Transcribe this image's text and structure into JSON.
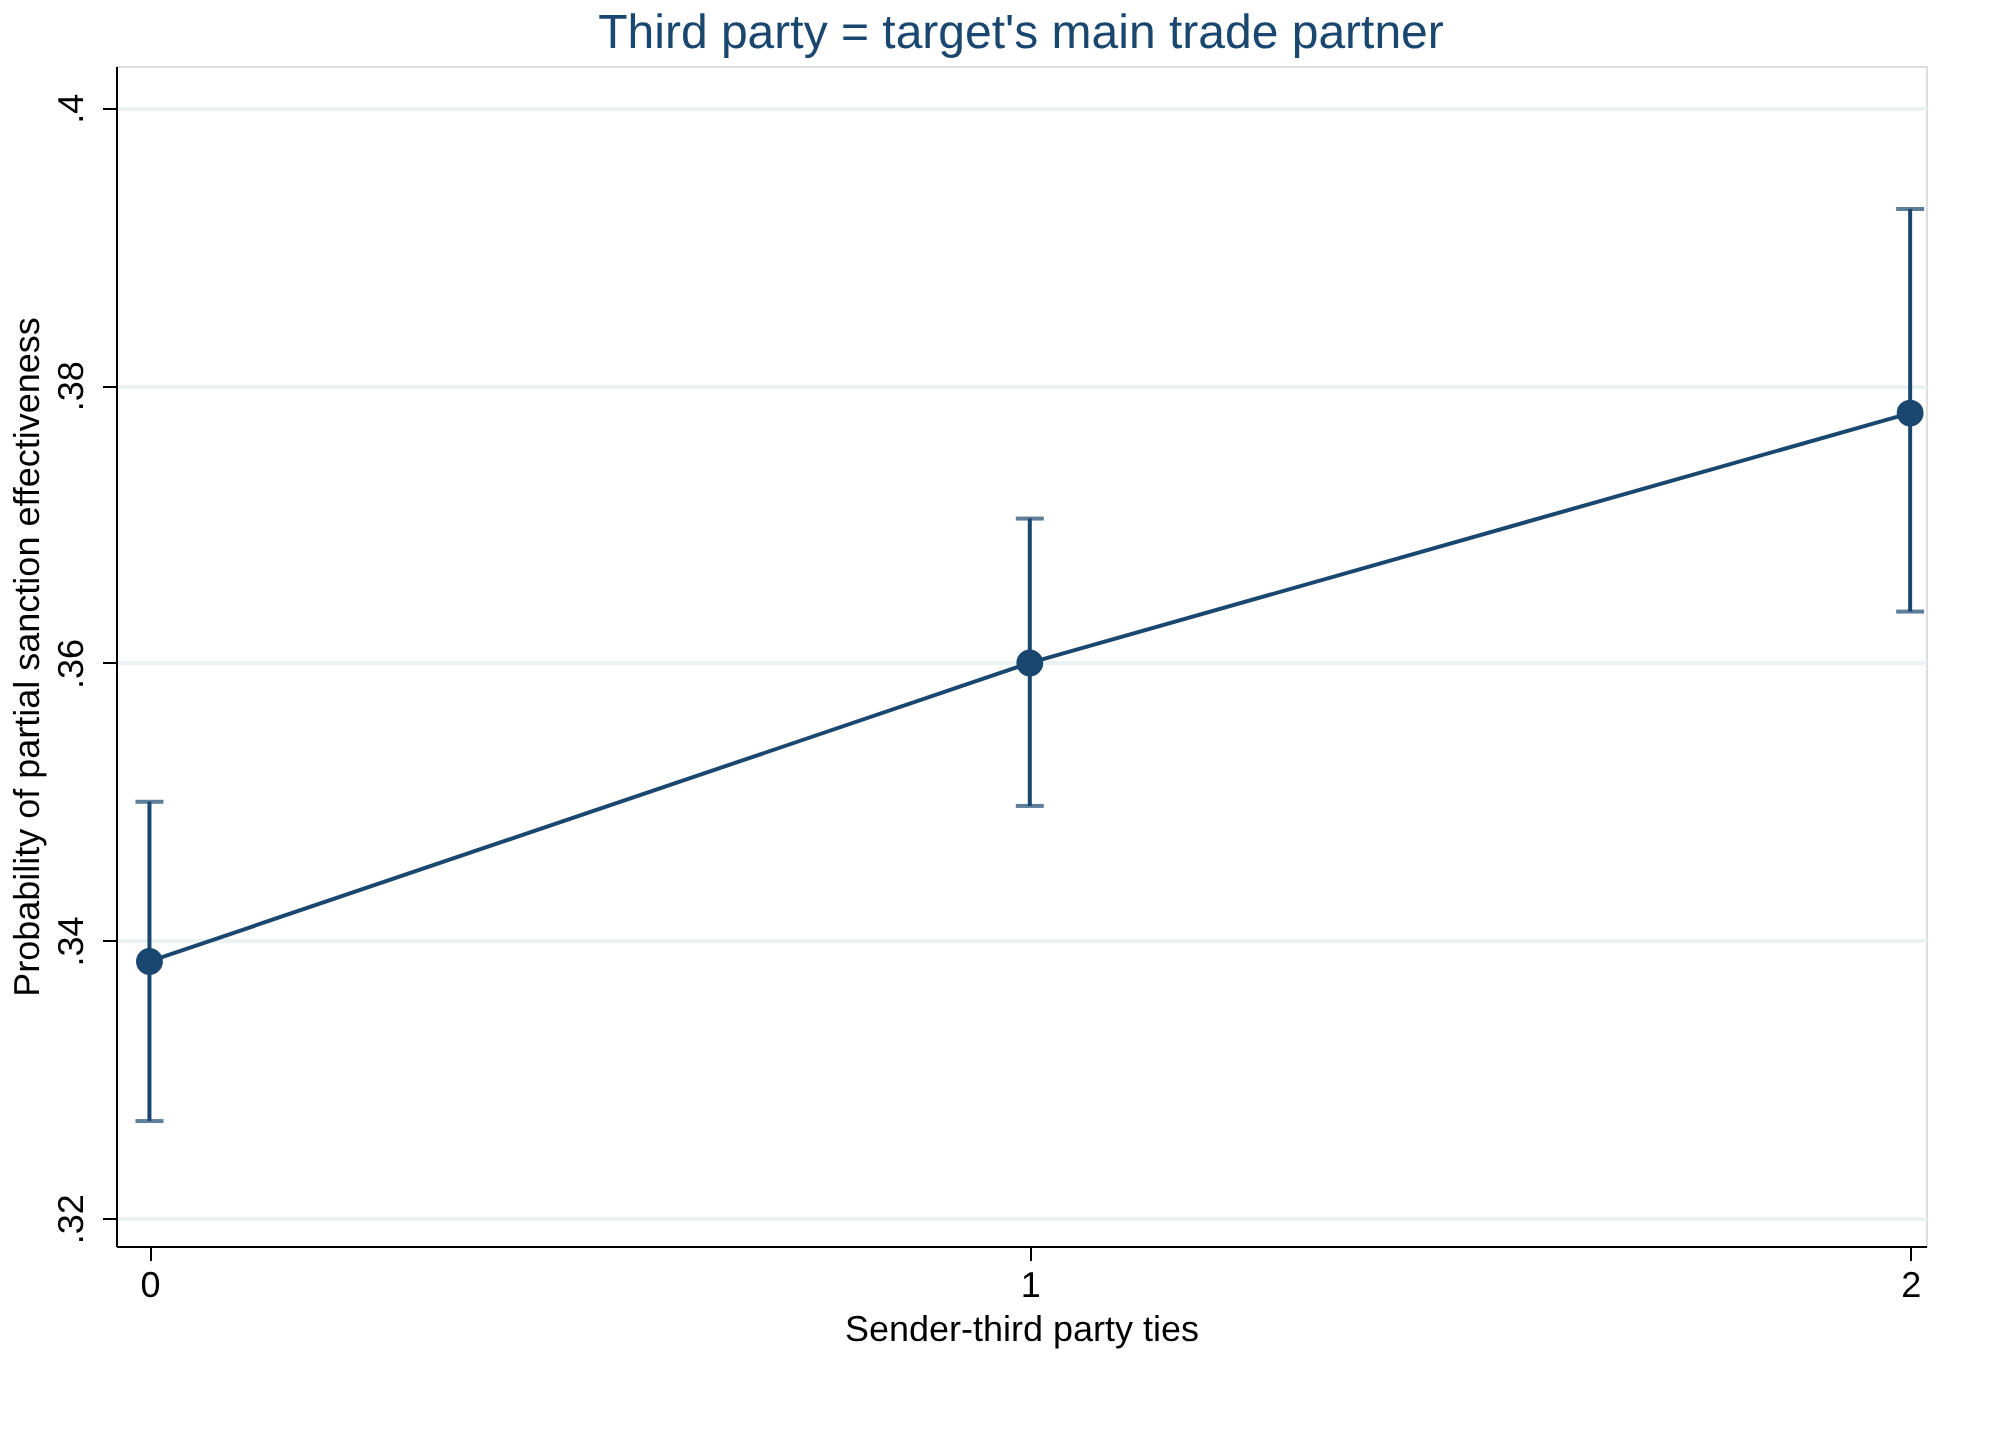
{
  "chart_data": {
    "type": "line",
    "title": "Third party = target's main trade partner",
    "xlabel": "Sender-third party ties",
    "ylabel": "Probability of partial sanction effectiveness",
    "x": [
      0,
      1,
      2
    ],
    "series": [
      {
        "color": "#1a476f",
        "values": [
          0.3385,
          0.36,
          0.378
        ],
        "errors": [
          [
            0.327,
            0.35
          ],
          [
            0.3497,
            0.3704
          ],
          [
            0.3637,
            0.3927
          ]
        ]
      }
    ],
    "xlim": [
      -0.038,
      2.018
    ],
    "ylim": [
      0.318,
      0.403
    ],
    "xticks": [
      0,
      1,
      2
    ],
    "yticks": [
      {
        "value": 0.32,
        "label": ".32"
      },
      {
        "value": 0.34,
        "label": ".34"
      },
      {
        "value": 0.36,
        "label": ".36"
      },
      {
        "value": 0.38,
        "label": ".38"
      },
      {
        "value": 0.4,
        "label": ".4"
      }
    ],
    "grid": "y",
    "marker": "circle",
    "line_style": "solid"
  }
}
